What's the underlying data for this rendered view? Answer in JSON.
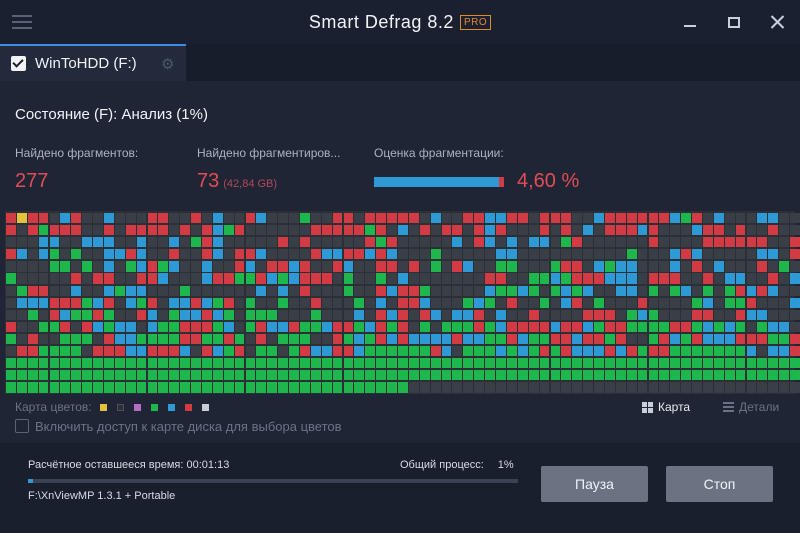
{
  "app": {
    "title": "Smart Defrag 8.2",
    "badge": "PRO"
  },
  "tab": {
    "label": "WinToHDD (F:)",
    "checked": true
  },
  "status": {
    "text": "Состояние (F): Анализ (1%)"
  },
  "stats": {
    "fragments_label": "Найдено фрагментов:",
    "fragments_value": "277",
    "fragmented_files_label": "Найдено фрагментиров...",
    "fragmented_files_value": "73",
    "fragmented_files_size": "(42,84 GB)",
    "fragmentation_label": "Оценка фрагментации:",
    "fragmentation_value": "4,60 %"
  },
  "legend": {
    "label": "Карта цветов:",
    "colors": [
      "#e3c23c",
      "#2b2f36",
      "#b36dc5",
      "#1db74e",
      "#2d9ad6",
      "#d23a44",
      "#c8ccd4"
    ]
  },
  "view": {
    "map_label": "Карта",
    "details_label": "Детали"
  },
  "access_toggle": {
    "label": "Включить доступ к карте диска для выбора цветов",
    "checked": false
  },
  "progress": {
    "remaining_label": "Расчётное оставшееся время:",
    "remaining_value": "00:01:13",
    "overall_label": "Общий процесс:",
    "overall_value": "1%",
    "overall_fraction": 0.01,
    "current_file": "F:\\XnViewMP 1.3.1 + Portable"
  },
  "buttons": {
    "pause": "Пауза",
    "stop": "Стоп"
  },
  "colors": {
    "accent": "#2d9ad6",
    "fragmented": "#d23a44",
    "contiguous": "#1db74e",
    "empty": "#3a3f47",
    "metadata": "#e3c23c"
  }
}
